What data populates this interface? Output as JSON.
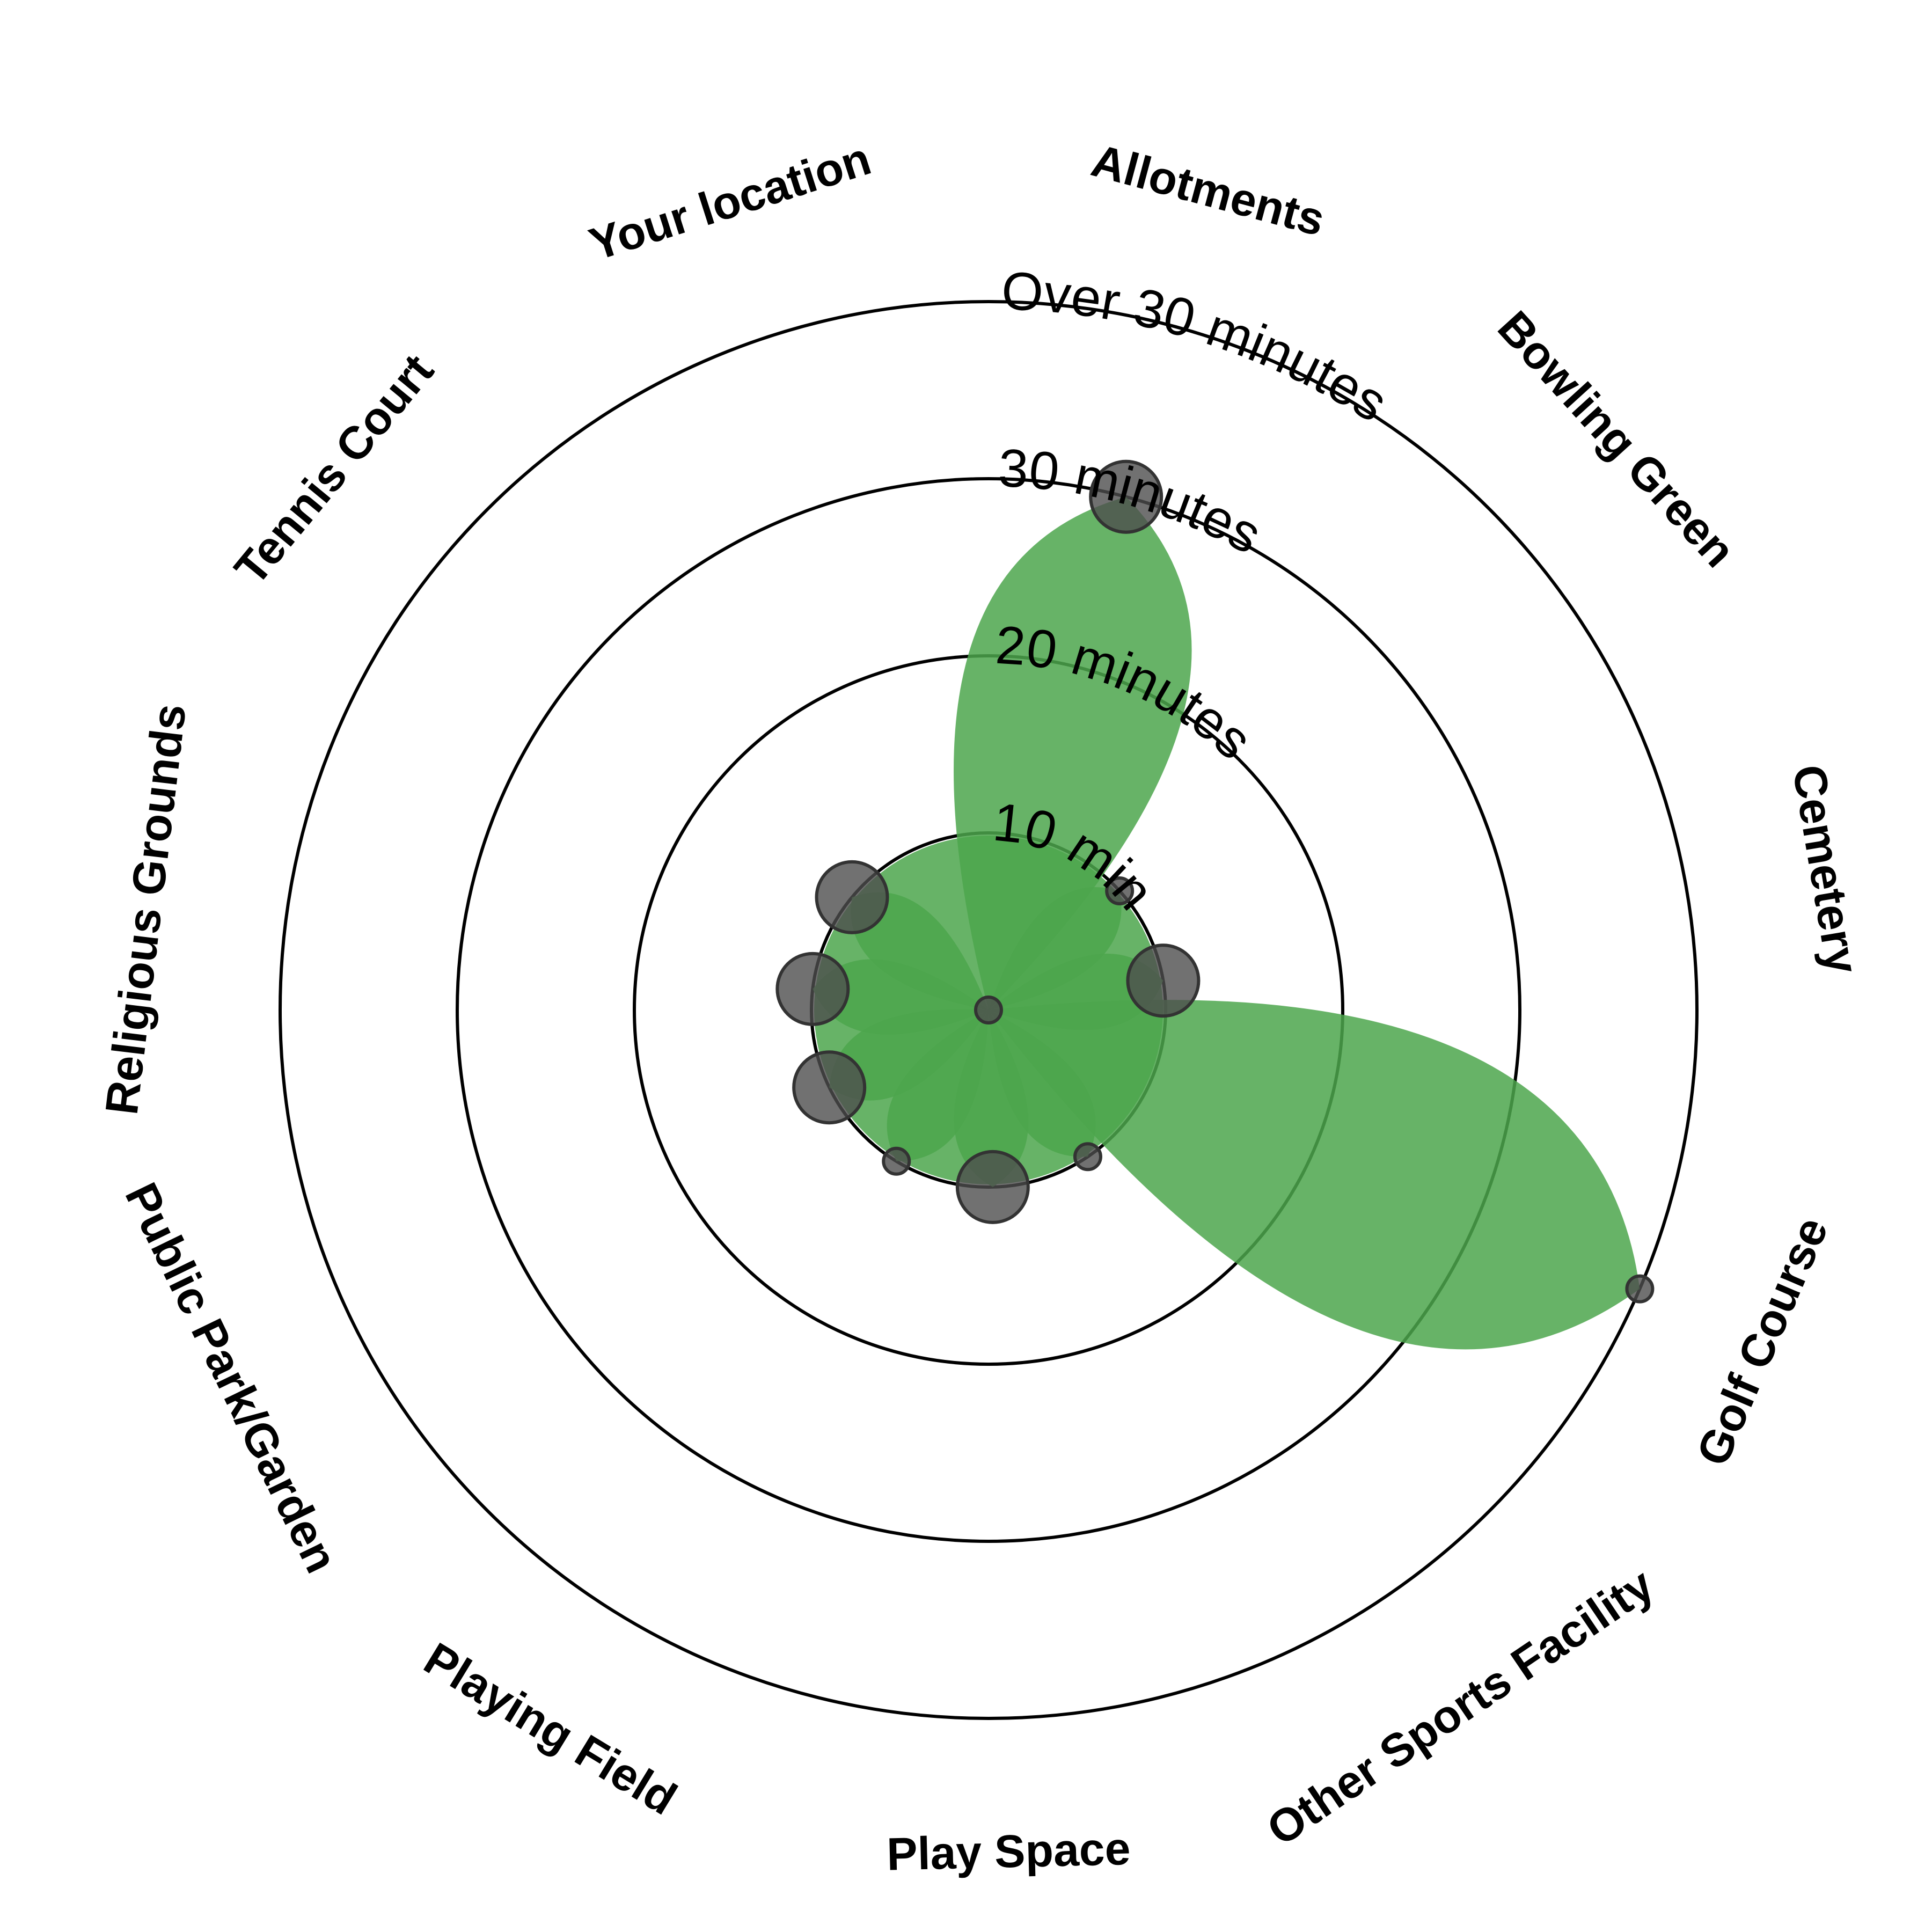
{
  "chart_data": {
    "type": "radial-bubble",
    "title": "",
    "ring_labels": [
      "10 minutes",
      "20 minutes",
      "30 minutes",
      "Over 30 minutes"
    ],
    "rmax_minutes": 40,
    "categories": [
      {
        "name": "Allotments",
        "minutes": 30,
        "count": 5
      },
      {
        "name": "Bowling Green",
        "minutes": 10,
        "count": 1
      },
      {
        "name": "Cemetery",
        "minutes": 10,
        "count": 5
      },
      {
        "name": "Golf Course",
        "minutes": 40,
        "count": 1
      },
      {
        "name": "Other Sports Facility",
        "minutes": 10,
        "count": 1
      },
      {
        "name": "Play Space",
        "minutes": 10,
        "count": 5
      },
      {
        "name": "Playing Field",
        "minutes": 10,
        "count": 1
      },
      {
        "name": "Public Park/Garden",
        "minutes": 10,
        "count": 5
      },
      {
        "name": "Religious Grounds",
        "minutes": 10,
        "count": 5
      },
      {
        "name": "Tennis Court",
        "minutes": 10,
        "count": 5
      },
      {
        "name": "Your location",
        "minutes": 0,
        "count": 1
      }
    ],
    "colors": {
      "area": "#4ca64c",
      "bubble": "#4d4d4d",
      "ring": "#000000"
    }
  }
}
